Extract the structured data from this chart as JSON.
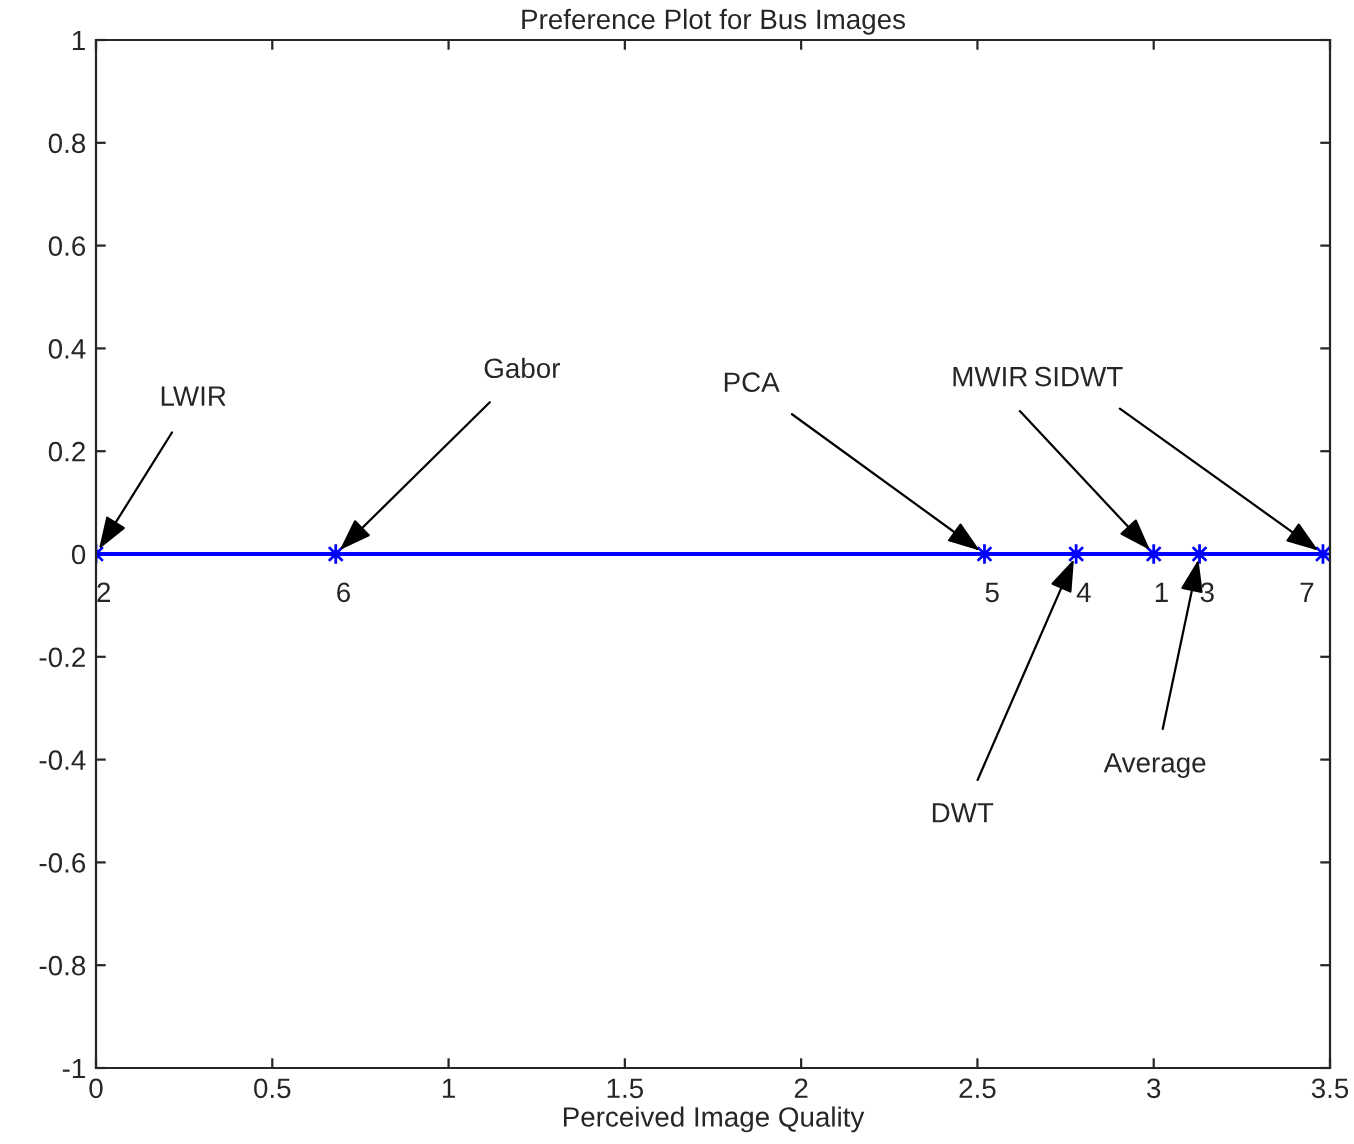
{
  "chart_data": {
    "type": "line",
    "title": "Preference Plot for Bus Images",
    "xlabel": "Perceived Image Quality",
    "x": [
      0,
      0.68,
      2.52,
      2.78,
      3.0,
      3.13,
      3.48
    ],
    "series": [
      {
        "color": "#0000ff",
        "values": [
          0,
          0,
          0,
          0,
          0,
          0,
          0
        ]
      }
    ],
    "marker": "star",
    "line_style": "solid",
    "xlim": [
      0,
      3.5
    ],
    "xticks": [
      0,
      0.5,
      1,
      1.5,
      2,
      2.5,
      3,
      3.5
    ],
    "ylim": [
      -1,
      1
    ],
    "yticks": [
      -1,
      -0.8,
      -0.6,
      -0.4,
      -0.2,
      0,
      0.2,
      0.4,
      0.6,
      0.8,
      1
    ],
    "annotations": [
      {
        "text": "LWIR",
        "x": 0,
        "y": 0
      },
      {
        "text": "Gabor",
        "x": 0.68,
        "y": 0
      },
      {
        "text": "PCA",
        "x": 2.52,
        "y": 0
      },
      {
        "text": "DWT",
        "x": 2.78,
        "y": 0
      },
      {
        "text": "MWIR",
        "x": 3.0,
        "y": 0
      },
      {
        "text": "Average",
        "x": 3.13,
        "y": 0
      },
      {
        "text": "SIDWT",
        "x": 3.48,
        "y": 0
      },
      {
        "text": "2",
        "x": 0,
        "y": 0
      },
      {
        "text": "6",
        "x": 0.68,
        "y": 0
      },
      {
        "text": "5",
        "x": 2.52,
        "y": 0
      },
      {
        "text": "4",
        "x": 2.78,
        "y": 0
      },
      {
        "text": "1",
        "x": 3.0,
        "y": 0
      },
      {
        "text": "3",
        "x": 3.13,
        "y": 0
      },
      {
        "text": "7",
        "x": 3.48,
        "y": 0
      }
    ],
    "grid": false,
    "legend": false
  }
}
